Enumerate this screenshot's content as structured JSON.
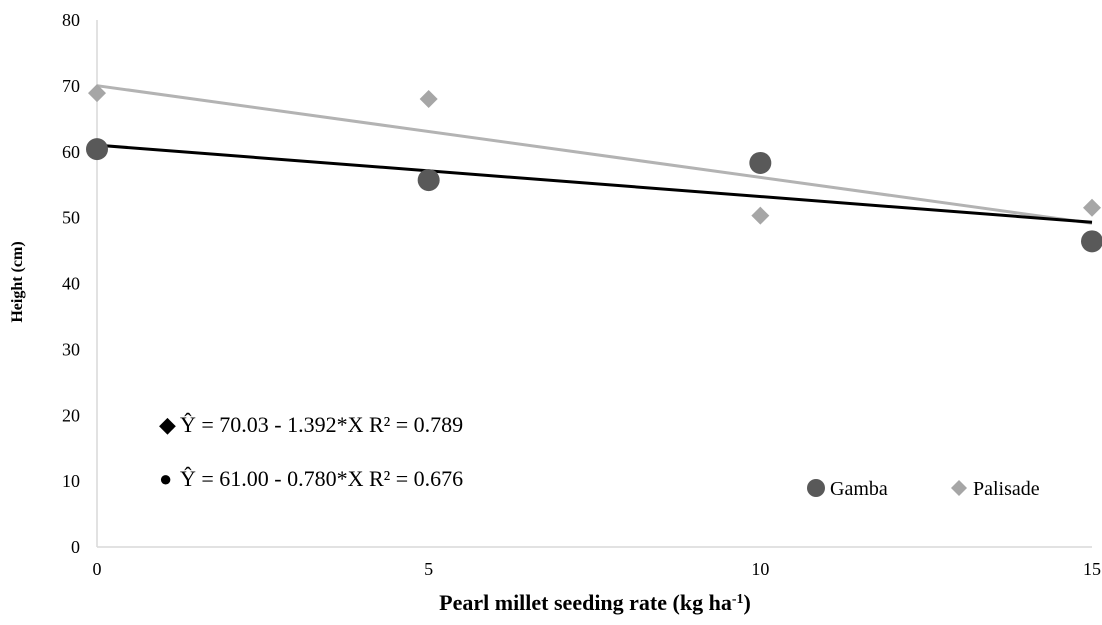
{
  "chart_data": {
    "type": "scatter",
    "xlabel": "Pearl millet seeding rate (kg ha",
    "xlabel_sup": "-1",
    "xlabel_end": ")",
    "ylabel": "Height (cm)",
    "xlim": [
      0,
      15
    ],
    "ylim": [
      0,
      80
    ],
    "x_ticks": [
      "0",
      "5",
      "10",
      "15"
    ],
    "y_ticks": [
      "0",
      "10",
      "20",
      "30",
      "40",
      "50",
      "60",
      "70",
      "80"
    ],
    "grid": false,
    "legend_position": "bottom-right",
    "series": [
      {
        "name": "Gamba",
        "marker": "circle",
        "color": "#595959",
        "x": [
          0,
          5,
          10,
          15
        ],
        "y": [
          60.4,
          55.7,
          58.3,
          46.4
        ],
        "trendline": {
          "intercept": 61.0,
          "slope": -0.78,
          "color": "#000000"
        },
        "equation": "Ŷ = 61.00 - 0.780*X R² = 0.676",
        "equation_marker": "●"
      },
      {
        "name": "Palisade",
        "marker": "diamond",
        "color": "#a6a6a6",
        "x": [
          0,
          5,
          10,
          15
        ],
        "y": [
          68.9,
          68.0,
          50.3,
          51.5
        ],
        "trendline": {
          "intercept": 70.03,
          "slope": -1.392,
          "color": "#b3b3b3"
        },
        "equation": "Ŷ = 70.03 - 1.392*X R² = 0.789",
        "equation_marker": "◆"
      }
    ]
  }
}
